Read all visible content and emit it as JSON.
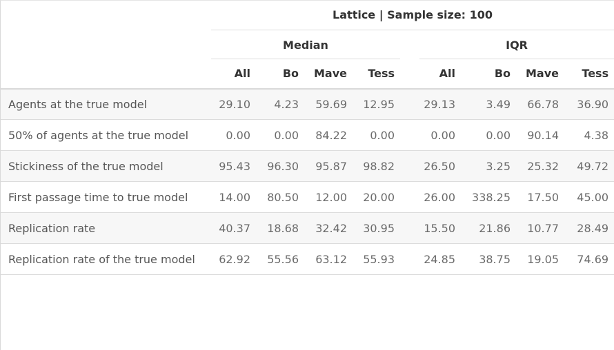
{
  "title": "Lattice | Sample size: 100",
  "groups": [
    {
      "label": "Median",
      "columns": [
        "All",
        "Bo",
        "Mave",
        "Tess"
      ]
    },
    {
      "label": "IQR",
      "columns": [
        "All",
        "Bo",
        "Mave",
        "Tess"
      ]
    }
  ],
  "rows": [
    {
      "label": "Agents at the true model",
      "median": [
        "29.10",
        "4.23",
        "59.69",
        "12.95"
      ],
      "iqr": [
        "29.13",
        "3.49",
        "66.78",
        "36.90"
      ]
    },
    {
      "label": "50% of agents at the true model",
      "median": [
        "0.00",
        "0.00",
        "84.22",
        "0.00"
      ],
      "iqr": [
        "0.00",
        "0.00",
        "90.14",
        "4.38"
      ]
    },
    {
      "label": "Stickiness of the true model",
      "median": [
        "95.43",
        "96.30",
        "95.87",
        "98.82"
      ],
      "iqr": [
        "26.50",
        "3.25",
        "25.32",
        "49.72"
      ]
    },
    {
      "label": "First passage time to true model",
      "median": [
        "14.00",
        "80.50",
        "12.00",
        "20.00"
      ],
      "iqr": [
        "26.00",
        "338.25",
        "17.50",
        "45.00"
      ]
    },
    {
      "label": "Replication rate",
      "median": [
        "40.37",
        "18.68",
        "32.42",
        "30.95"
      ],
      "iqr": [
        "15.50",
        "21.86",
        "10.77",
        "28.49"
      ]
    },
    {
      "label": "Replication rate of the true model",
      "median": [
        "62.92",
        "55.56",
        "63.12",
        "55.93"
      ],
      "iqr": [
        "24.85",
        "38.75",
        "19.05",
        "74.69"
      ]
    }
  ]
}
